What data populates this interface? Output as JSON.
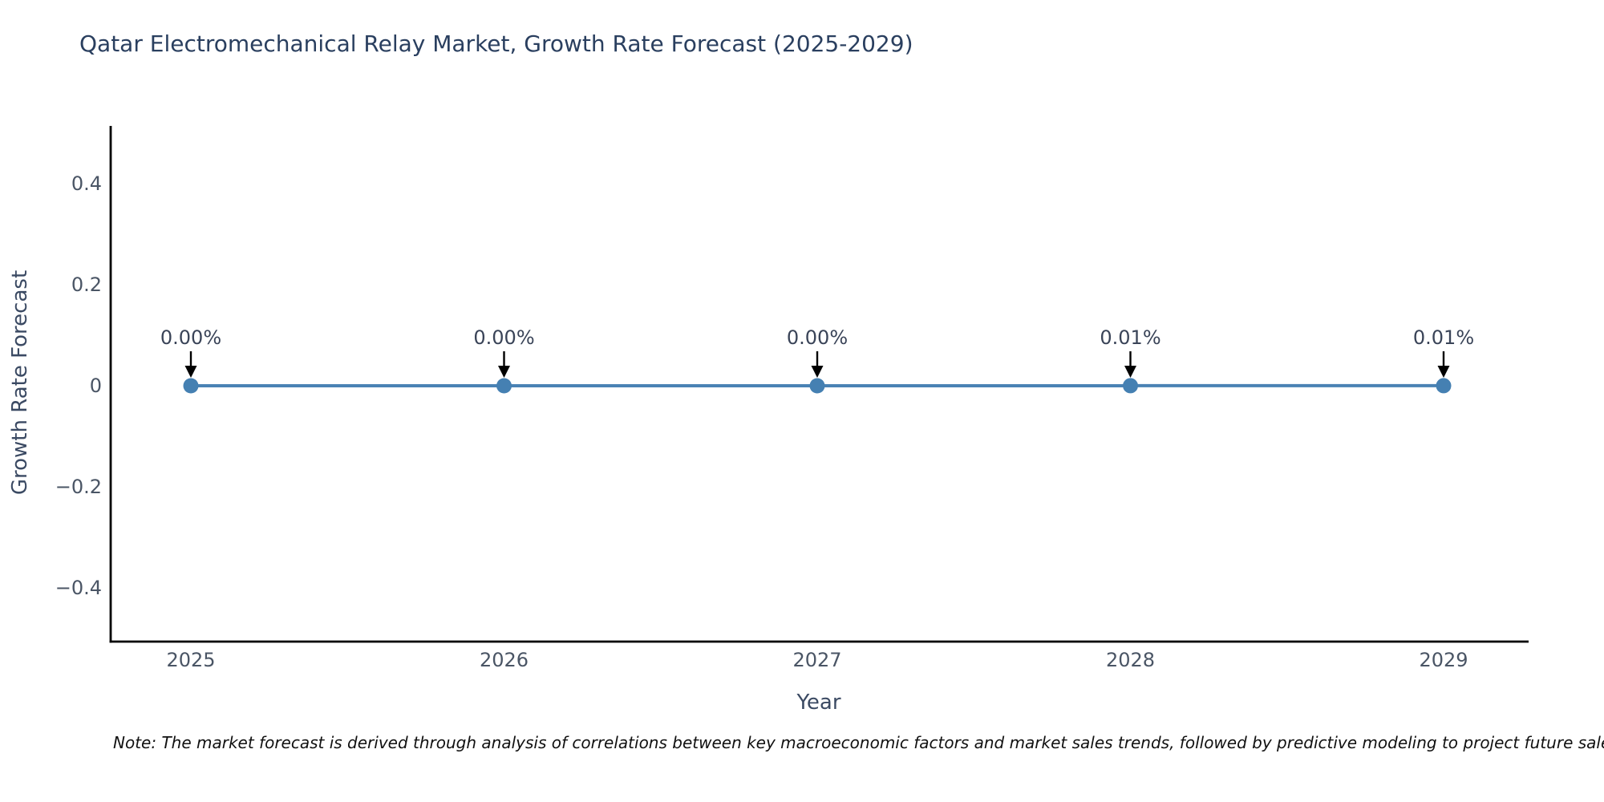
{
  "title": "Qatar Electromechanical Relay Market, Growth Rate Forecast (2025-2029)",
  "note": "Note: The market forecast is derived through analysis of correlations between key macroeconomic factors and market sales trends, followed by predictive modeling to project future sales.",
  "chart_data": {
    "type": "line",
    "title": "Qatar Electromechanical Relay Market, Growth Rate Forecast (2025-2029)",
    "xlabel": "Year",
    "ylabel": "Growth Rate Forecast",
    "categories": [
      "2025",
      "2026",
      "2027",
      "2028",
      "2029"
    ],
    "series": [
      {
        "name": "Growth Rate Forecast",
        "values_percent": [
          0.0,
          0.0,
          0.0,
          0.01,
          0.01
        ]
      }
    ],
    "point_labels": [
      "0.00%",
      "0.00%",
      "0.00%",
      "0.01%",
      "0.01%"
    ],
    "y_ticks": [
      {
        "label": "0.4",
        "value": 0.4
      },
      {
        "label": "0.2",
        "value": 0.2
      },
      {
        "label": "0",
        "value": 0
      },
      {
        "label": "−0.2",
        "value": -0.2
      },
      {
        "label": "−0.4",
        "value": -0.4
      }
    ],
    "ylim": [
      -0.51,
      0.52
    ],
    "grid": false,
    "legend": "none",
    "line_color": "#4a82b4",
    "marker_color": "#4580b2",
    "axis_color": "#000000",
    "annotation_arrow_color": "#000000",
    "annotation_text_color": "#3a4458",
    "title_color": "#2a3f5f",
    "axis_label_color": "#3b4a63",
    "tick_label_color": "#4a5565"
  }
}
